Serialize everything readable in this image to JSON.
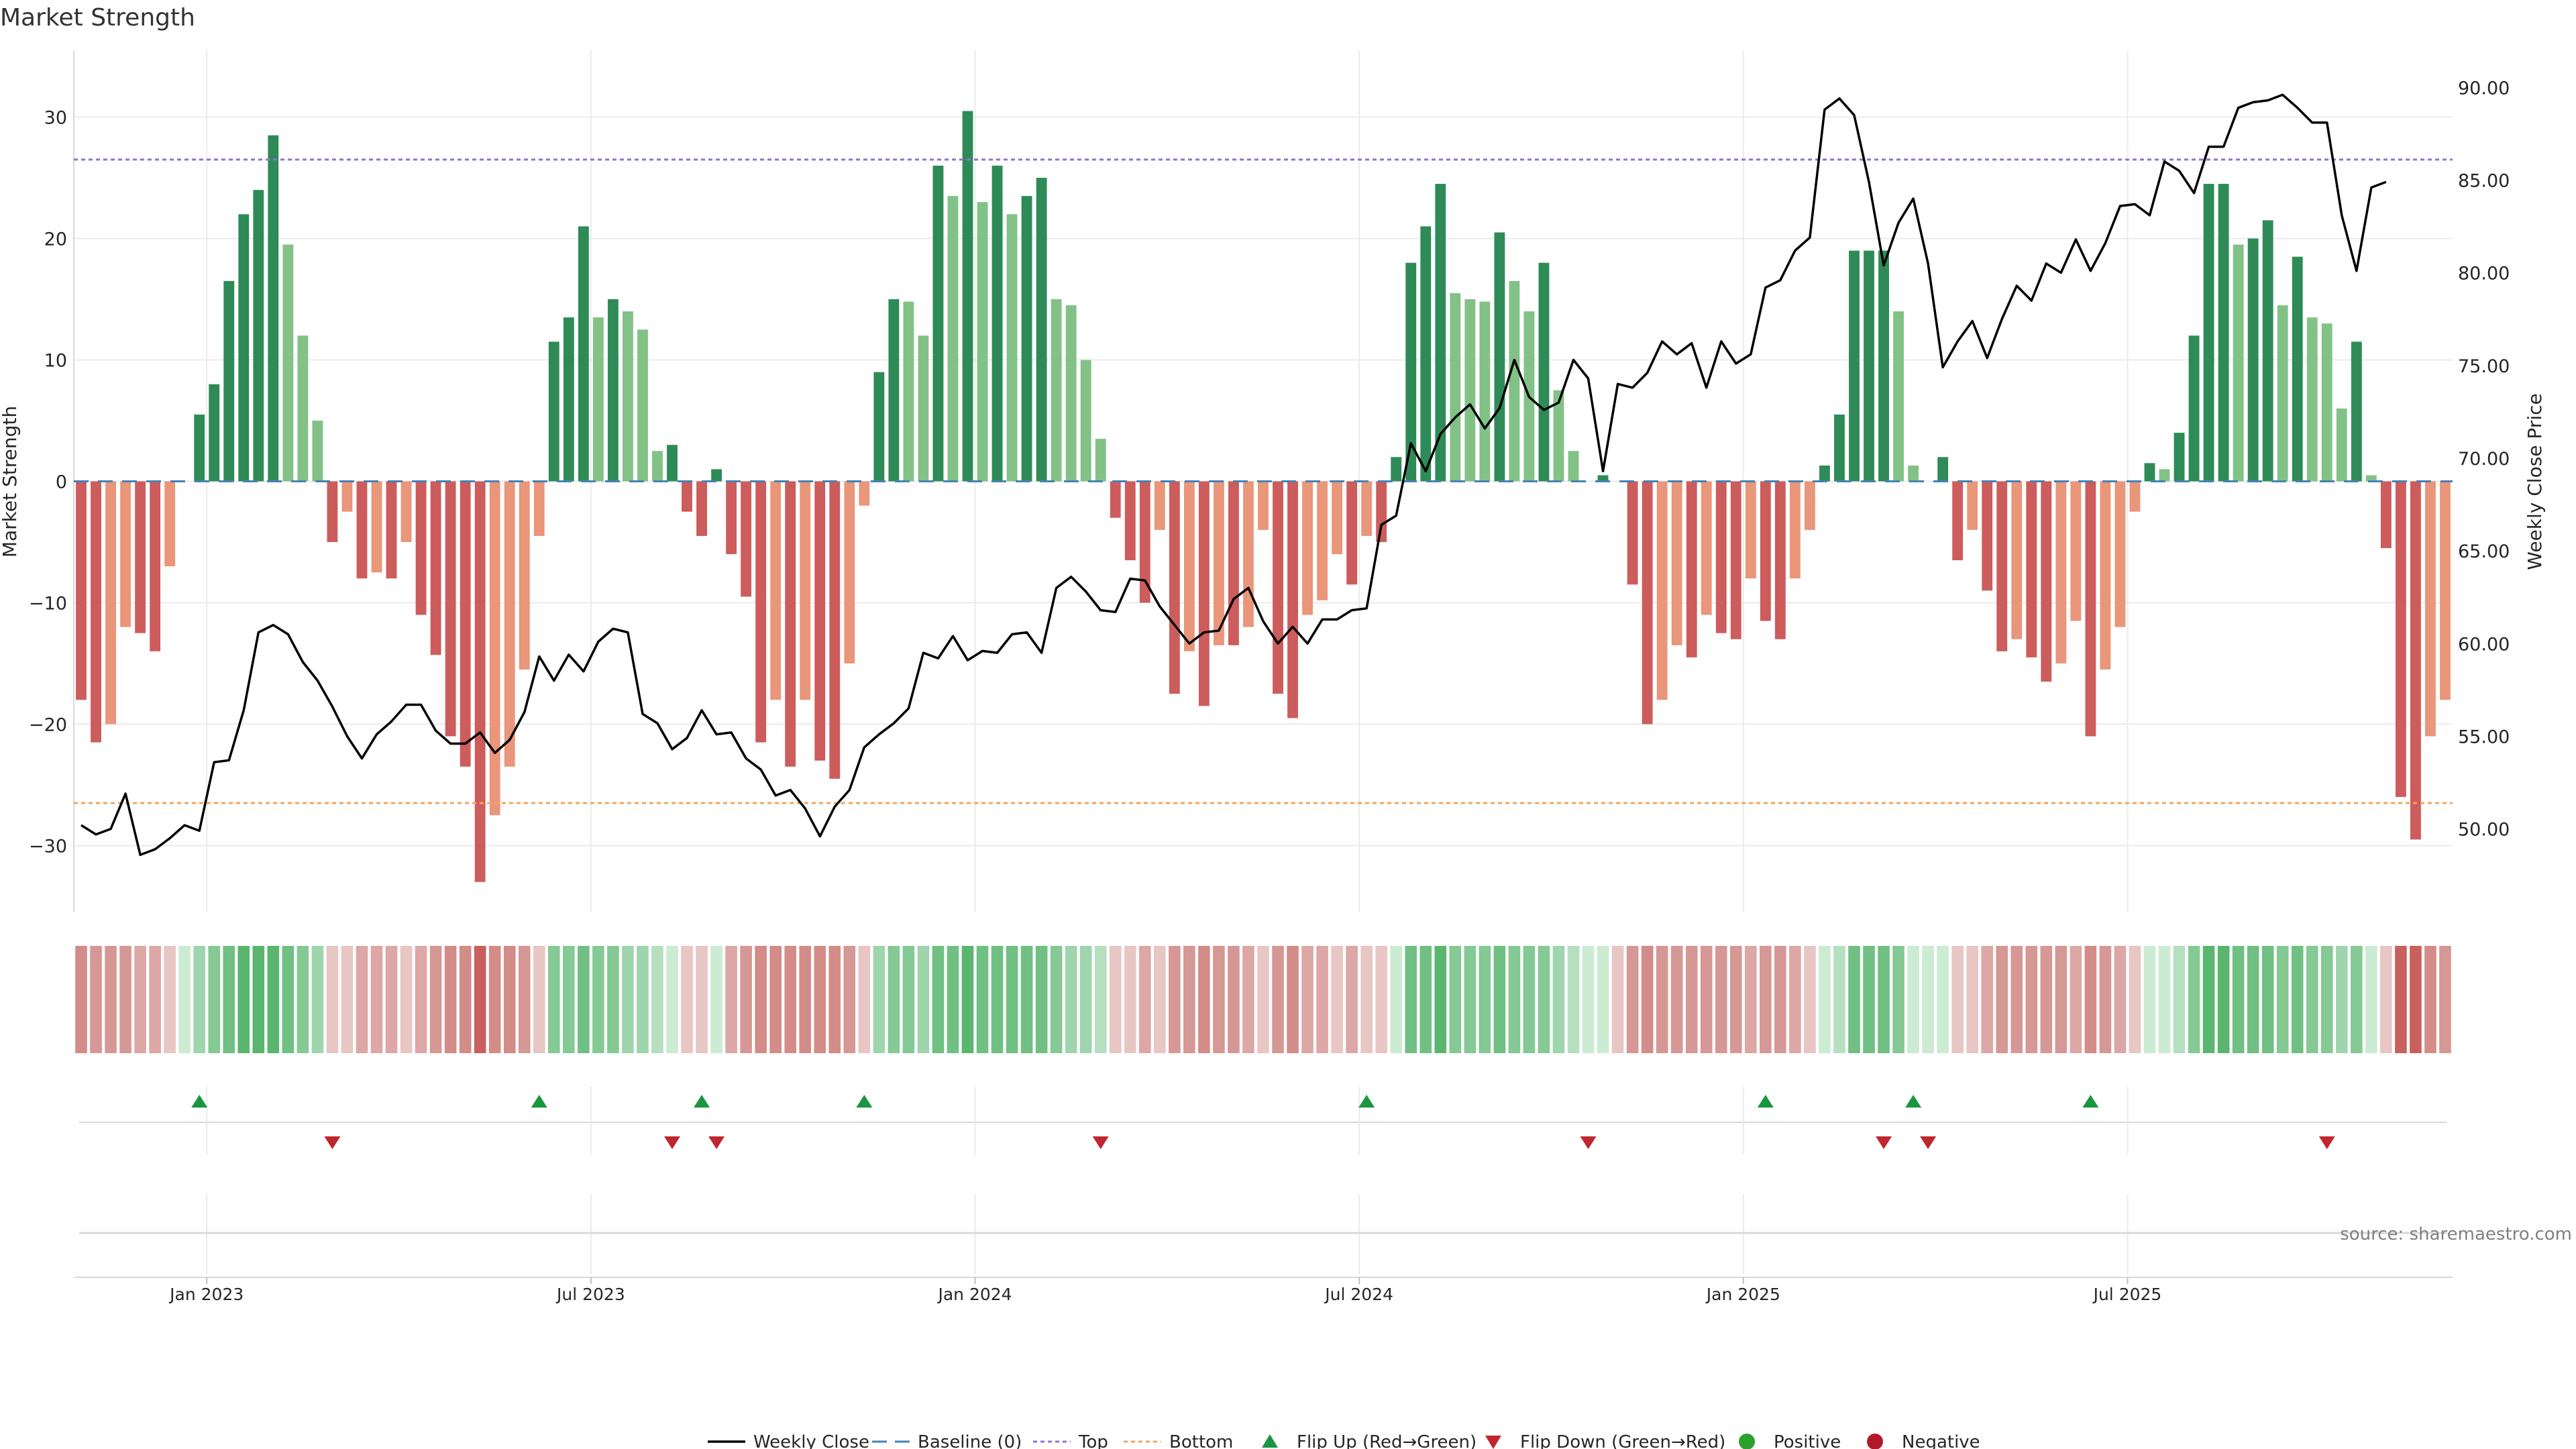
{
  "chart_data": {
    "type": "bar",
    "title": "Market Strength",
    "ylabel_left": "Market Strength",
    "ylabel_right": "Weekly Close Price",
    "source": "source: sharemaestro.com",
    "y_left": {
      "min": -35.5,
      "max": 35.5,
      "ticks": [
        -30,
        -20,
        -10,
        0,
        10,
        20,
        30
      ],
      "tick_labels": [
        "−30",
        "−20",
        "−10",
        "0",
        "10",
        "20",
        "30"
      ]
    },
    "y_right": {
      "min": 45.5,
      "max": 92.0,
      "ticks": [
        50,
        55,
        60,
        65,
        70,
        75,
        80,
        85,
        90
      ],
      "tick_labels": [
        "50.00",
        "55.00",
        "60.00",
        "65.00",
        "70.00",
        "75.00",
        "80.00",
        "85.00",
        "90.00"
      ]
    },
    "x_ticks": [
      {
        "index": 8.5,
        "label": "Jan 2023"
      },
      {
        "index": 34.5,
        "label": "Jul 2023"
      },
      {
        "index": 60.5,
        "label": "Jan 2024"
      },
      {
        "index": 86.5,
        "label": "Jul 2024"
      },
      {
        "index": 112.5,
        "label": "Jan 2025"
      },
      {
        "index": 138.5,
        "label": "Jul 2025"
      }
    ],
    "top_line": 26.5,
    "bottom_line": -26.5,
    "baseline": 0,
    "bar_values": [
      -18,
      -21.5,
      -20,
      -12,
      -12.5,
      -14,
      -7,
      0,
      5.5,
      8,
      16.5,
      22,
      24,
      28.5,
      19.5,
      12,
      5,
      -5,
      -2.5,
      -8,
      -7.5,
      -8,
      -5,
      -11,
      -14.3,
      -21,
      -23.5,
      -33,
      -27.5,
      -23.5,
      -15.5,
      -4.5,
      11.5,
      13.5,
      21,
      13.5,
      15,
      14,
      12.5,
      2.5,
      3,
      -2.5,
      -4.5,
      1,
      -6,
      -9.5,
      -21.5,
      -18,
      -23.5,
      -18,
      -23,
      -24.5,
      -15,
      -2,
      9,
      15,
      14.8,
      12,
      26,
      23.5,
      30.5,
      23,
      26,
      22,
      23.5,
      25,
      15,
      14.5,
      10,
      3.5,
      -3,
      -6.5,
      -10,
      -4,
      -17.5,
      -14,
      -18.5,
      -13.5,
      -13.5,
      -12,
      -4,
      -17.5,
      -19.5,
      -11,
      -9.8,
      -6,
      -8.5,
      -4.5,
      -5,
      2,
      18,
      21,
      24.5,
      15.5,
      15,
      14.8,
      20.5,
      16.5,
      14,
      18,
      7.5,
      2.5,
      0,
      0.5,
      0,
      -8.5,
      -20,
      -18,
      -13.5,
      -14.5,
      -11,
      -12.5,
      -13,
      -8,
      -11.5,
      -13,
      -8,
      -4,
      1.3,
      5.5,
      19,
      19,
      19,
      14,
      1.3,
      0,
      2,
      -6.5,
      -4,
      -9,
      -14,
      -13,
      -14.5,
      -16.5,
      -15,
      -11.5,
      -21,
      -15.5,
      -12,
      -2.5,
      1.5,
      1,
      4,
      12,
      24.5,
      24.5,
      19.5,
      20,
      21.5,
      14.5,
      18.5,
      13.5,
      13,
      6,
      11.5,
      0.5,
      -5.5,
      -26,
      -29.5,
      -21,
      -18
    ],
    "price_values": [
      50.2,
      49.7,
      50,
      51.9,
      48.6,
      48.9,
      49.5,
      50.2,
      49.9,
      53.6,
      53.7,
      56.4,
      60.6,
      61,
      60.5,
      59,
      58,
      56.6,
      55,
      53.8,
      55.1,
      55.8,
      56.7,
      56.7,
      55.3,
      54.6,
      54.6,
      55.2,
      54.1,
      54.8,
      56.3,
      59.3,
      58,
      59.4,
      58.5,
      60.1,
      60.8,
      60.6,
      56.2,
      55.7,
      54.3,
      54.9,
      56.4,
      55.1,
      55.2,
      53.8,
      53.2,
      51.8,
      52.1,
      51.1,
      49.6,
      51.2,
      52.1,
      54.4,
      55.1,
      55.7,
      56.5,
      59.5,
      59.2,
      60.4,
      59.1,
      59.6,
      59.5,
      60.5,
      60.6,
      59.5,
      63,
      63.6,
      62.8,
      61.8,
      61.7,
      63.5,
      63.4,
      62,
      61,
      60,
      60.6,
      60.7,
      62.4,
      63,
      61.2,
      60,
      60.9,
      60,
      61.3,
      61.3,
      61.8,
      61.9,
      66.4,
      66.9,
      70.8,
      69.3,
      71.3,
      72.2,
      72.9,
      71.6,
      72.7,
      75.3,
      73.3,
      72.6,
      73,
      75.3,
      74.3,
      69.3,
      74,
      73.8,
      74.6,
      76.3,
      75.6,
      76.2,
      73.8,
      76.3,
      75.1,
      75.6,
      79.2,
      79.6,
      81.2,
      81.9,
      88.8,
      89.4,
      88.5,
      84.9,
      80.4,
      82.7,
      84,
      80.5,
      74.9,
      76.3,
      77.4,
      75.4,
      77.5,
      79.3,
      78.5,
      80.5,
      80,
      81.8,
      80.1,
      81.6,
      83.6,
      83.7,
      83.1,
      86,
      85.5,
      84.3,
      86.8,
      86.8,
      88.9,
      89.2,
      89.3,
      89.6,
      88.9,
      88.1,
      88.1,
      83.1,
      80.1,
      84.6,
      84.9
    ],
    "heatmap_colors": [
      "#d38c88",
      "#d69894",
      "#d69894",
      "#d69894",
      "#dca7a4",
      "#dca7a4",
      "#e7c6c4",
      "#ccebd3",
      "#9fd5ad",
      "#85c995",
      "#70c084",
      "#5ab66e",
      "#5ab66e",
      "#5ab66e",
      "#70c084",
      "#85c995",
      "#9fd5ad",
      "#e7c6c4",
      "#e7c6c4",
      "#dca7a4",
      "#dca7a4",
      "#dca7a4",
      "#e7c6c4",
      "#dca7a4",
      "#d69894",
      "#d38c88",
      "#d38c88",
      "#c8605e",
      "#d38c88",
      "#d38c88",
      "#d69894",
      "#e7c6c4",
      "#85c995",
      "#85c995",
      "#70c084",
      "#85c995",
      "#85c995",
      "#9fd5ad",
      "#9fd5ad",
      "#b6dfc0",
      "#ccebd3",
      "#e7c6c4",
      "#e7c6c4",
      "#ccebd3",
      "#dca7a4",
      "#d69894",
      "#d38c88",
      "#d38c88",
      "#d38c88",
      "#d38c88",
      "#d38c88",
      "#d38c88",
      "#d69894",
      "#e7c6c4",
      "#9fd5ad",
      "#85c995",
      "#85c995",
      "#9fd5ad",
      "#70c084",
      "#70c084",
      "#5ab66e",
      "#70c084",
      "#70c084",
      "#70c084",
      "#70c084",
      "#70c084",
      "#85c995",
      "#9fd5ad",
      "#9fd5ad",
      "#b6dfc0",
      "#e7c6c4",
      "#e7c6c4",
      "#dca7a4",
      "#e7c6c4",
      "#d69894",
      "#d69894",
      "#d38c88",
      "#d69894",
      "#d69894",
      "#dca7a4",
      "#e7c6c4",
      "#d69894",
      "#d38c88",
      "#dca7a4",
      "#dca7a4",
      "#e7c6c4",
      "#dca7a4",
      "#e7c6c4",
      "#e7c6c4",
      "#ccebd3",
      "#70c084",
      "#70c084",
      "#5ab66e",
      "#85c995",
      "#85c995",
      "#85c995",
      "#70c084",
      "#85c995",
      "#85c995",
      "#85c995",
      "#9fd5ad",
      "#b6dfc0",
      "#ccebd3",
      "#ccebd3",
      "#e7c6c4",
      "#d69894",
      "#d38c88",
      "#d69894",
      "#d69894",
      "#d69894",
      "#d69894",
      "#d69894",
      "#d69894",
      "#dca7a4",
      "#d69894",
      "#d69894",
      "#dca7a4",
      "#e7c6c4",
      "#ccebd3",
      "#b6dfc0",
      "#70c084",
      "#70c084",
      "#70c084",
      "#85c995",
      "#ccebd3",
      "#ccebd3",
      "#ccebd3",
      "#e7c6c4",
      "#e7c6c4",
      "#dca7a4",
      "#d69894",
      "#d69894",
      "#d69894",
      "#d69894",
      "#d69894",
      "#dca7a4",
      "#d38c88",
      "#d69894",
      "#dca7a4",
      "#e7c6c4",
      "#ccebd3",
      "#ccebd3",
      "#b6dfc0",
      "#85c995",
      "#5ab66e",
      "#5ab66e",
      "#70c084",
      "#70c084",
      "#70c084",
      "#85c995",
      "#70c084",
      "#85c995",
      "#85c995",
      "#9fd5ad",
      "#85c995",
      "#ccebd3",
      "#e7c6c4",
      "#c8605e",
      "#c8605e",
      "#d38c88",
      "#d69894"
    ],
    "flip_up": [
      8,
      31,
      42,
      53,
      87,
      114,
      124,
      136
    ],
    "flip_down": [
      17,
      40,
      43,
      69,
      102,
      122,
      125,
      152
    ],
    "legend": [
      {
        "key": "weekly_close",
        "label": "Weekly Close"
      },
      {
        "key": "baseline",
        "label": "Baseline (0)"
      },
      {
        "key": "top",
        "label": "Top"
      },
      {
        "key": "bottom",
        "label": "Bottom"
      },
      {
        "key": "flip_up",
        "label": "Flip Up (Red→Green)"
      },
      {
        "key": "flip_down",
        "label": "Flip Down (Green→Red)"
      },
      {
        "key": "positive",
        "label": "Positive"
      },
      {
        "key": "negative",
        "label": "Negative"
      }
    ],
    "colors": {
      "pos_strong": "#2e8b57",
      "pos_light": "#82c287",
      "neg_strong": "#cd5c5c",
      "neg_light": "#e9967a",
      "price_line": "#000000",
      "baseline": "#4682b4",
      "top": "#9370db",
      "bottom": "#f4a460",
      "flip_up": "#1a9641",
      "flip_down": "#c0262e",
      "positive_dot": "#2ca02c",
      "negative_dot": "#b2182b",
      "grid": "#ebebeb",
      "axis": "#d9d9d9"
    }
  }
}
